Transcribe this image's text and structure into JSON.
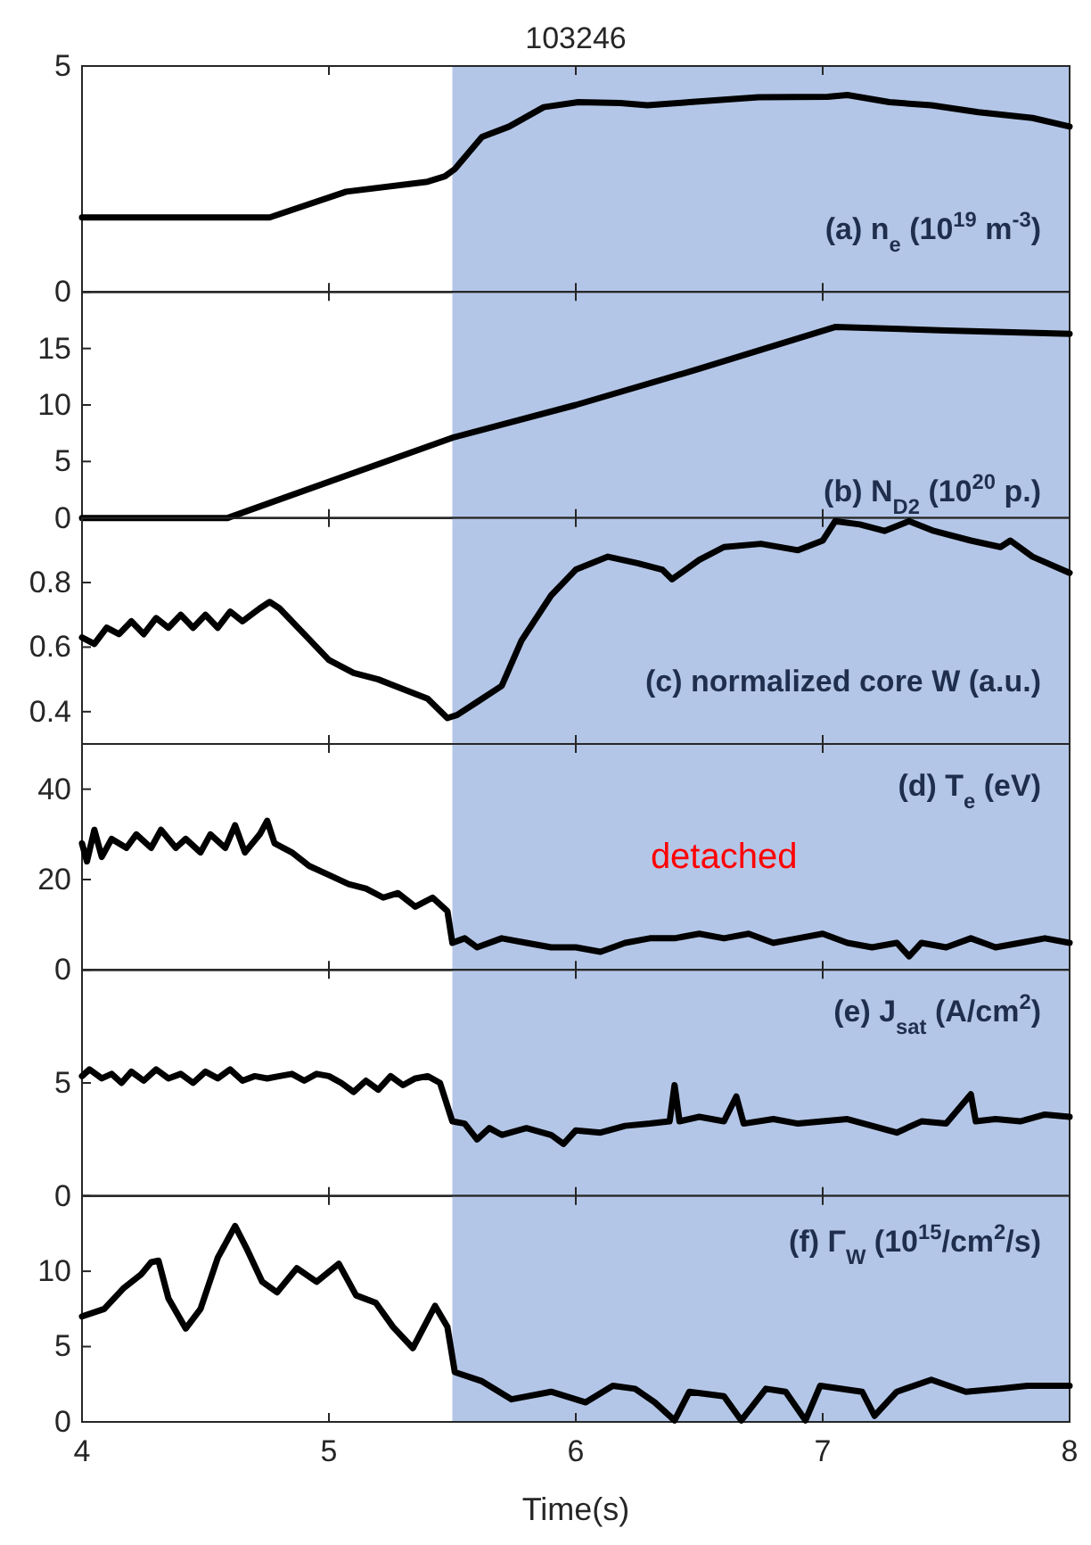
{
  "chart_data": [
    {
      "type": "line",
      "title": "103246",
      "annotations": [
        "(a) n$_{e}$ (10$^{19}$ m$^{-3}$)"
      ],
      "xlim": [
        4,
        8
      ],
      "xticks": [
        4,
        5,
        6,
        7,
        8
      ],
      "ylim": [
        0,
        5
      ],
      "yticks": [
        0,
        5
      ],
      "tick_labels": "y",
      "bands": [
        {
          "axis": "x",
          "from": 5.5,
          "to": 8,
          "color": "#b4c6e7"
        }
      ],
      "series": [
        {
          "color": "#000000",
          "x": [
            4,
            4.76,
            5.07,
            5.4,
            5.47,
            5.51,
            5.62,
            5.73,
            5.87,
            6.01,
            6.18,
            6.29,
            6.46,
            6.74,
            7.02,
            7.1,
            7.27,
            7.44,
            7.63,
            7.85,
            8
          ],
          "values": [
            1.65,
            1.65,
            2.22,
            2.44,
            2.56,
            2.72,
            3.43,
            3.66,
            4.09,
            4.2,
            4.18,
            4.13,
            4.2,
            4.31,
            4.32,
            4.36,
            4.2,
            4.13,
            3.98,
            3.85,
            3.66
          ]
        }
      ]
    },
    {
      "type": "line",
      "annotations": [
        "(b) N$_{D2}$ (10$^{20}$ p.)"
      ],
      "xlim": [
        4,
        8
      ],
      "xticks": [
        4,
        5,
        6,
        7,
        8
      ],
      "ylim": [
        0,
        20
      ],
      "yticks": [
        0,
        5,
        10,
        15
      ],
      "tick_labels": "y",
      "bands": [
        {
          "axis": "x",
          "from": 5.5,
          "to": 8,
          "color": "#b4c6e7"
        }
      ],
      "series": [
        {
          "color": "#000000",
          "x": [
            4,
            4.59,
            5.5,
            6,
            6.5,
            7.05,
            7.5,
            8
          ],
          "values": [
            0,
            0,
            7.1,
            10,
            13.2,
            16.9,
            16.6,
            16.3
          ]
        }
      ]
    },
    {
      "type": "line",
      "annotations": [
        "(c) normalized core W (a.u.)"
      ],
      "xlim": [
        4,
        8
      ],
      "xticks": [
        4,
        5,
        6,
        7,
        8
      ],
      "ylim": [
        0.3,
        1
      ],
      "yticks": [
        0.4,
        0.6,
        0.8
      ],
      "tick_labels": "y",
      "bands": [
        {
          "axis": "x",
          "from": 5.5,
          "to": 8,
          "color": "#b4c6e7"
        }
      ],
      "series": [
        {
          "color": "#000000",
          "x": [
            4,
            4.05,
            4.1,
            4.15,
            4.2,
            4.25,
            4.3,
            4.35,
            4.4,
            4.45,
            4.5,
            4.55,
            4.6,
            4.65,
            4.72,
            4.76,
            4.8,
            4.9,
            5,
            5.1,
            5.2,
            5.3,
            5.4,
            5.48,
            5.52,
            5.6,
            5.7,
            5.78,
            5.9,
            6,
            6.13,
            6.25,
            6.35,
            6.39,
            6.5,
            6.6,
            6.75,
            6.9,
            7,
            7.05,
            7.15,
            7.25,
            7.35,
            7.45,
            7.6,
            7.72,
            7.76,
            7.85,
            8
          ],
          "values": [
            0.63,
            0.61,
            0.66,
            0.64,
            0.68,
            0.64,
            0.69,
            0.66,
            0.7,
            0.66,
            0.7,
            0.66,
            0.71,
            0.68,
            0.72,
            0.74,
            0.72,
            0.64,
            0.56,
            0.52,
            0.5,
            0.47,
            0.44,
            0.38,
            0.39,
            0.43,
            0.48,
            0.62,
            0.76,
            0.84,
            0.88,
            0.86,
            0.84,
            0.81,
            0.87,
            0.91,
            0.92,
            0.9,
            0.93,
            0.99,
            0.98,
            0.96,
            0.99,
            0.96,
            0.93,
            0.91,
            0.93,
            0.88,
            0.83
          ]
        }
      ]
    },
    {
      "type": "line",
      "annotations": [
        "(d) T$_{e}$ (eV)",
        "detached"
      ],
      "xlim": [
        4,
        8
      ],
      "xticks": [
        4,
        5,
        6,
        7,
        8
      ],
      "ylim": [
        0,
        50
      ],
      "yticks": [
        0,
        20,
        40
      ],
      "tick_labels": "y",
      "bands": [
        {
          "axis": "x",
          "from": 5.5,
          "to": 8,
          "color": "#b4c6e7"
        }
      ],
      "series": [
        {
          "color": "#000000",
          "x": [
            4,
            4.02,
            4.05,
            4.08,
            4.12,
            4.18,
            4.22,
            4.28,
            4.32,
            4.38,
            4.42,
            4.48,
            4.52,
            4.58,
            4.62,
            4.66,
            4.72,
            4.75,
            4.78,
            4.85,
            4.92,
            5,
            5.08,
            5.15,
            5.22,
            5.28,
            5.35,
            5.42,
            5.48,
            5.5,
            5.55,
            5.6,
            5.7,
            5.8,
            5.9,
            6,
            6.1,
            6.2,
            6.3,
            6.4,
            6.5,
            6.6,
            6.7,
            6.8,
            6.9,
            7,
            7.1,
            7.2,
            7.3,
            7.35,
            7.4,
            7.5,
            7.6,
            7.7,
            7.8,
            7.9,
            8
          ],
          "values": [
            28,
            24,
            31,
            25,
            29,
            27,
            30,
            27,
            31,
            27,
            29,
            26,
            30,
            27,
            32,
            26,
            30,
            33,
            28,
            26,
            23,
            21,
            19,
            18,
            16,
            17,
            14,
            16,
            13,
            6,
            7,
            5,
            7,
            6,
            5,
            5,
            4,
            6,
            7,
            7,
            8,
            7,
            8,
            6,
            7,
            8,
            6,
            5,
            6,
            3,
            6,
            5,
            7,
            5,
            6,
            7,
            6
          ]
        }
      ]
    },
    {
      "type": "line",
      "annotations": [
        "(e) J$_{sat}$ (A/cm$^{2}$)"
      ],
      "xlim": [
        4,
        8
      ],
      "xticks": [
        4,
        5,
        6,
        7,
        8
      ],
      "ylim": [
        0,
        10
      ],
      "yticks": [
        0,
        5
      ],
      "tick_labels": "y",
      "bands": [
        {
          "axis": "x",
          "from": 5.5,
          "to": 8,
          "color": "#b4c6e7"
        }
      ],
      "series": [
        {
          "color": "#000000",
          "x": [
            4,
            4.03,
            4.08,
            4.12,
            4.16,
            4.2,
            4.25,
            4.3,
            4.35,
            4.4,
            4.45,
            4.5,
            4.55,
            4.6,
            4.65,
            4.7,
            4.75,
            4.8,
            4.85,
            4.9,
            4.95,
            5,
            5.05,
            5.1,
            5.15,
            5.2,
            5.25,
            5.3,
            5.35,
            5.4,
            5.45,
            5.5,
            5.55,
            5.6,
            5.65,
            5.7,
            5.8,
            5.9,
            5.95,
            6,
            6.1,
            6.2,
            6.3,
            6.38,
            6.4,
            6.42,
            6.5,
            6.6,
            6.65,
            6.68,
            6.8,
            6.9,
            7,
            7.1,
            7.2,
            7.3,
            7.4,
            7.5,
            7.6,
            7.62,
            7.7,
            7.8,
            7.9,
            8
          ],
          "values": [
            5.3,
            5.6,
            5.2,
            5.4,
            5,
            5.5,
            5.1,
            5.6,
            5.2,
            5.4,
            5,
            5.5,
            5.2,
            5.6,
            5.1,
            5.3,
            5.2,
            5.3,
            5.4,
            5.1,
            5.4,
            5.3,
            5,
            4.6,
            5.1,
            4.7,
            5.3,
            4.9,
            5.2,
            5.3,
            5,
            3.3,
            3.2,
            2.5,
            3,
            2.7,
            3,
            2.7,
            2.3,
            2.9,
            2.8,
            3.1,
            3.2,
            3.3,
            4.9,
            3.3,
            3.5,
            3.3,
            4.4,
            3.2,
            3.4,
            3.2,
            3.3,
            3.4,
            3.1,
            2.8,
            3.3,
            3.2,
            4.5,
            3.3,
            3.4,
            3.3,
            3.6,
            3.5
          ]
        }
      ]
    },
    {
      "type": "line",
      "annotations": [
        "(f) Γ$_{W}$ (10$^{15}$/cm$^{2}$/s)"
      ],
      "xlabel": "Time(s)",
      "xlim": [
        4,
        8
      ],
      "xticks": [
        4,
        5,
        6,
        7,
        8
      ],
      "ylim": [
        0,
        15
      ],
      "yticks": [
        0,
        5,
        10
      ],
      "bands": [
        {
          "axis": "x",
          "from": 5.5,
          "to": 8,
          "color": "#b4c6e7"
        }
      ],
      "series": [
        {
          "color": "#000000",
          "x": [
            4,
            4.09,
            4.17,
            4.24,
            4.28,
            4.31,
            4.35,
            4.42,
            4.48,
            4.55,
            4.62,
            4.67,
            4.73,
            4.79,
            4.87,
            4.95,
            5.04,
            5.11,
            5.19,
            5.26,
            5.34,
            5.43,
            5.48,
            5.51,
            5.62,
            5.74,
            5.9,
            6.04,
            6.15,
            6.24,
            6.32,
            6.4,
            6.46,
            6.6,
            6.67,
            6.77,
            6.85,
            6.93,
            6.99,
            7.16,
            7.21,
            7.3,
            7.44,
            7.58,
            7.72,
            7.83,
            8
          ],
          "values": [
            7,
            7.5,
            8.9,
            9.8,
            10.6,
            10.7,
            8.2,
            6.2,
            7.5,
            10.9,
            13,
            11.4,
            9.3,
            8.6,
            10.2,
            9.3,
            10.5,
            8.4,
            7.9,
            6.3,
            4.9,
            7.7,
            6.3,
            3.3,
            2.7,
            1.5,
            2,
            1.3,
            2.4,
            2.2,
            1.3,
            0.1,
            2,
            1.7,
            0.1,
            2.2,
            2,
            0.1,
            2.4,
            2,
            0.4,
            2,
            2.8,
            2,
            2.2,
            2.4,
            2.4
          ]
        }
      ]
    }
  ]
}
